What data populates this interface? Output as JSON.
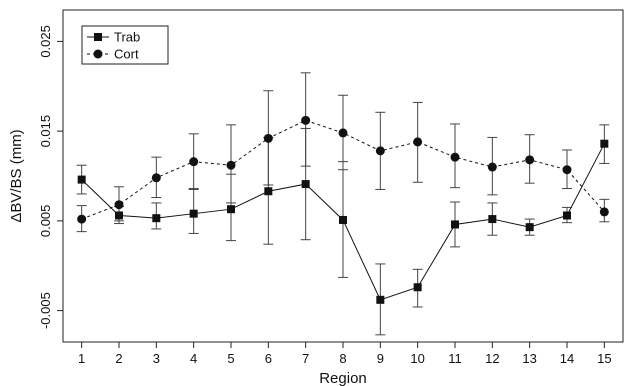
{
  "chart_data": {
    "type": "line",
    "title": "",
    "xlabel": "Region",
    "ylabel": "ΔBV/BS (mm)",
    "x": [
      1,
      2,
      3,
      4,
      5,
      6,
      7,
      8,
      9,
      10,
      11,
      12,
      13,
      14,
      15
    ],
    "xlim": [
      0.5,
      15.5
    ],
    "ylim": [
      -0.0085,
      0.0285
    ],
    "yticks": [
      -0.005,
      0.005,
      0.015,
      0.025
    ],
    "ytick_labels": [
      "-0.005",
      "0.005",
      "0.015",
      "0.025"
    ],
    "grid": false,
    "legend_position": "top-left",
    "series": [
      {
        "name": "Trab",
        "marker": "square",
        "line_style": "solid",
        "values": [
          0.0096,
          0.0056,
          0.0053,
          0.0058,
          0.0063,
          0.0083,
          0.0091,
          0.0051,
          -0.0038,
          -0.0024,
          0.0046,
          0.0052,
          0.0043,
          0.0056,
          0.0136
        ],
        "err_low": [
          0.008,
          0.0047,
          0.0041,
          0.0036,
          0.0028,
          0.0024,
          0.0029,
          -0.0013,
          -0.0077,
          -0.0046,
          0.0021,
          0.0034,
          0.0034,
          0.0048,
          0.0114
        ],
        "err_high": [
          0.0112,
          0.0066,
          0.007,
          0.0085,
          0.0102,
          0.0143,
          0.0153,
          0.0116,
          0.0002,
          -0.0004,
          0.0071,
          0.007,
          0.0052,
          0.0065,
          0.0157
        ]
      },
      {
        "name": "Cort",
        "marker": "circle",
        "line_style": "dashed",
        "values": [
          0.0052,
          0.0068,
          0.0098,
          0.0116,
          0.0112,
          0.0142,
          0.0162,
          0.0148,
          0.0128,
          0.0138,
          0.0121,
          0.011,
          0.0118,
          0.0107,
          0.006
        ],
        "err_low": [
          0.0038,
          0.005,
          0.0076,
          0.0086,
          0.007,
          0.009,
          0.0111,
          0.0107,
          0.0085,
          0.0093,
          0.0087,
          0.0079,
          0.0092,
          0.0086,
          0.0049
        ],
        "err_high": [
          0.0067,
          0.0088,
          0.0121,
          0.0147,
          0.0157,
          0.0195,
          0.0215,
          0.019,
          0.0171,
          0.0182,
          0.0158,
          0.0143,
          0.0146,
          0.0129,
          0.0074
        ]
      }
    ]
  }
}
